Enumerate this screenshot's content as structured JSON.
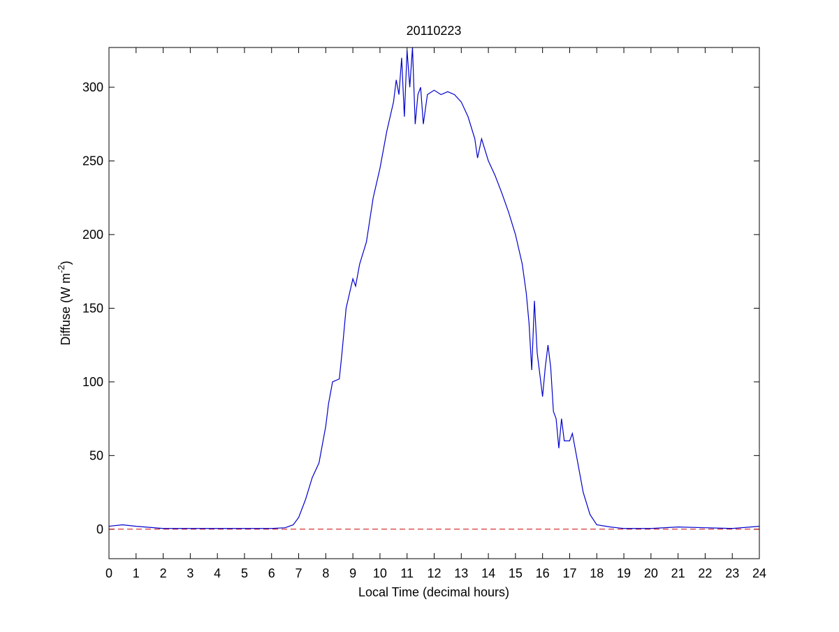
{
  "chart_data": {
    "type": "line",
    "title": "20110223",
    "xlabel": "Local Time (decimal hours)",
    "ylabel": {
      "text": "Diffuse (W m",
      "superscript": "-2",
      "suffix": ")"
    },
    "x": [
      0,
      0.5,
      1,
      2,
      3,
      4,
      5,
      6,
      6.5,
      6.8,
      7,
      7.25,
      7.5,
      7.75,
      8,
      8.1,
      8.25,
      8.5,
      8.6,
      8.75,
      9,
      9.1,
      9.25,
      9.5,
      9.75,
      10,
      10.25,
      10.5,
      10.6,
      10.7,
      10.8,
      10.9,
      11,
      11.1,
      11.2,
      11.3,
      11.4,
      11.5,
      11.6,
      11.75,
      12,
      12.25,
      12.5,
      12.75,
      13,
      13.25,
      13.5,
      13.6,
      13.75,
      14,
      14.25,
      14.5,
      14.75,
      15,
      15.25,
      15.4,
      15.5,
      15.6,
      15.7,
      15.8,
      15.9,
      16,
      16.1,
      16.2,
      16.3,
      16.4,
      16.5,
      16.6,
      16.7,
      16.8,
      17,
      17.1,
      17.25,
      17.5,
      17.75,
      18,
      18.5,
      19,
      20,
      21,
      22,
      23,
      24
    ],
    "series": [
      {
        "name": "Diffuse",
        "color": "#0000cc",
        "values": [
          2,
          3,
          2,
          0.5,
          0.5,
          0.5,
          0.5,
          0.5,
          1,
          3,
          8,
          20,
          35,
          45,
          70,
          85,
          100,
          102,
          120,
          150,
          170,
          165,
          180,
          195,
          225,
          245,
          270,
          290,
          305,
          295,
          320,
          280,
          325,
          300,
          327,
          275,
          295,
          300,
          275,
          295,
          298,
          295,
          297,
          295,
          290,
          280,
          265,
          252,
          265,
          250,
          240,
          228,
          215,
          200,
          180,
          160,
          140,
          108,
          155,
          120,
          105,
          90,
          110,
          125,
          110,
          80,
          75,
          55,
          75,
          60,
          60,
          65,
          50,
          25,
          10,
          3,
          1.5,
          0.5,
          0.5,
          1.5,
          1,
          0.5,
          2
        ]
      }
    ],
    "reference_line": {
      "value": 0,
      "color": "#cc0000",
      "style": "dashed"
    },
    "xlim": [
      0,
      24
    ],
    "xticks": [
      0,
      1,
      2,
      3,
      4,
      5,
      6,
      7,
      8,
      9,
      10,
      11,
      12,
      13,
      14,
      15,
      16,
      17,
      18,
      19,
      20,
      21,
      22,
      23,
      24
    ],
    "ylim": [
      -20,
      327
    ],
    "yticks": [
      0,
      50,
      100,
      150,
      200,
      250,
      300
    ]
  }
}
